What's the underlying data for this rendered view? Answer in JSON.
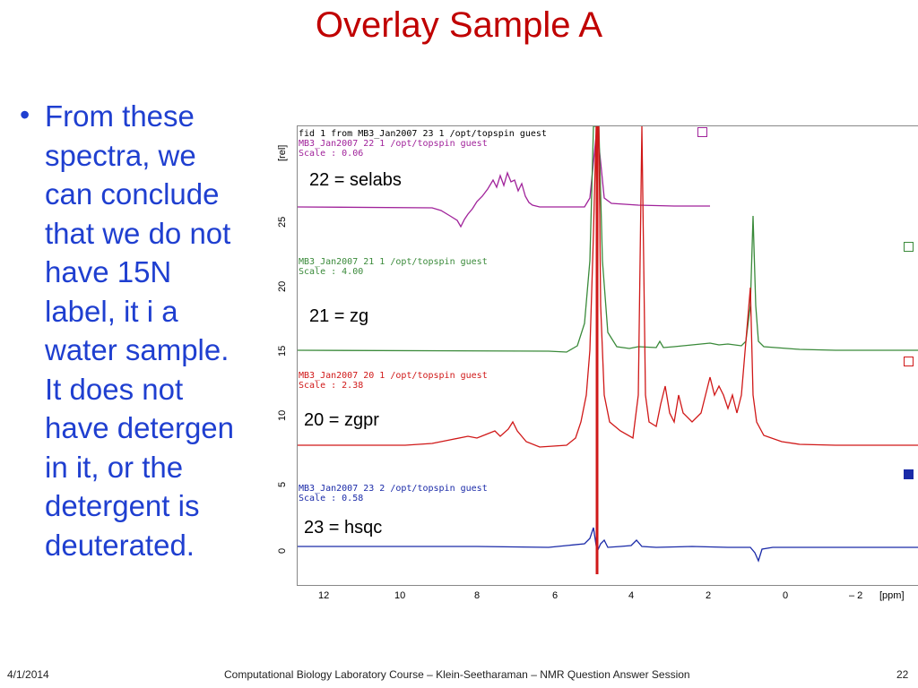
{
  "slide": {
    "title": "Overlay Sample A",
    "bullet_lines": [
      "From these",
      "spectra, we",
      "can conclude",
      "that we do not",
      "have 15N",
      "label, it i a",
      "water sample.",
      "It does not",
      "have detergen",
      "in it, or the",
      "detergent is",
      "deuterated."
    ],
    "footer": {
      "date": "4/1/2014",
      "course": "Computational Biology Laboratory Course – Klein-Seetharaman – NMR Question Answer Session",
      "page": "22"
    }
  },
  "spectrum": {
    "header_top": "fid 1 from MB3_Jan2007  23  1  /opt/topspin  guest",
    "y_axis_unit": "[rel]",
    "x_axis_unit": "[ppm]",
    "y_ticks": [
      "0",
      "5",
      "10",
      "15",
      "20",
      "25"
    ],
    "x_ticks": [
      "12",
      "10",
      "8",
      "6",
      "4",
      "2",
      "0",
      "– 2"
    ],
    "traces": [
      {
        "header": "MB3_Jan2007  22  1  /opt/topspin  guest",
        "scale": "Scale : 0.06",
        "label": "22 = selabs",
        "color": "#a0229a"
      },
      {
        "header": "MB3_Jan2007  21  1  /opt/topspin  guest",
        "scale": "Scale : 4.00",
        "label": "21 = zg",
        "color": "#3a8a3a"
      },
      {
        "header": "MB3_Jan2007  20  1  /opt/topspin  guest",
        "scale": "Scale : 2.38",
        "label": "20 = zgpr",
        "color": "#d01818"
      },
      {
        "header": "MB3_Jan2007  23  2  /opt/topspin  guest",
        "scale": "Scale : 0.58",
        "label": "23 = hsqc",
        "color": "#1a2aa8"
      }
    ],
    "marker_colors": [
      "#a0229a",
      "#3a8a3a",
      "#d01818",
      "#1a2aa8"
    ]
  }
}
